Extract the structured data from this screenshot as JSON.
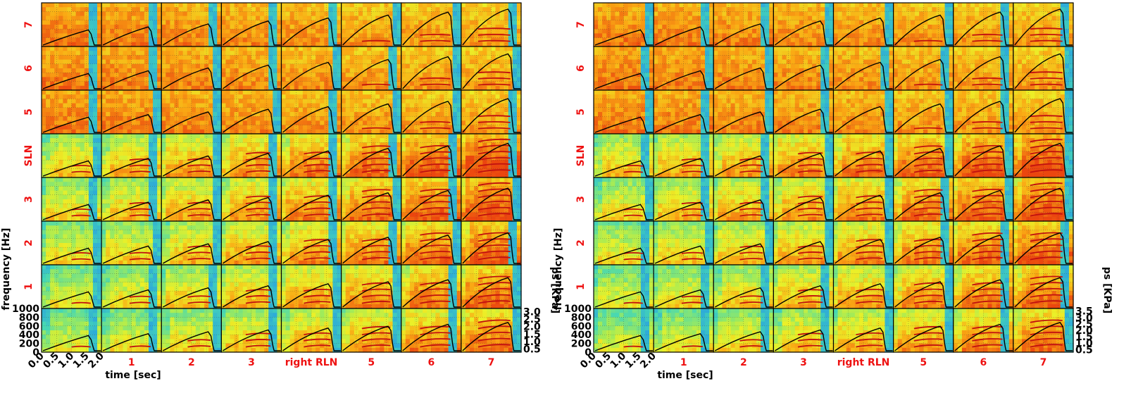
{
  "colors": {
    "label_red": "#ee1111",
    "text_black": "#000000",
    "background": "#ffffff",
    "trace": "#000000",
    "grid": "#333333",
    "harmonic": "#c01010"
  },
  "chart_data": [
    {
      "type": "heatmap",
      "title": "",
      "row_labels": [
        "7",
        "6",
        "5",
        "SLN",
        "3",
        "2",
        "1",
        ""
      ],
      "col_labels": [
        "",
        "1",
        "2",
        "3",
        "right RLN",
        "5",
        "6",
        "7"
      ],
      "ylabel": "frequency [Hz]",
      "y2label": "ps [KPa]",
      "xlabel": "time [sec]",
      "x_ticks": [
        "0.0",
        "0.5",
        "1.0",
        "1.5",
        "2.0"
      ],
      "xlim": [
        0.0,
        2.0
      ],
      "y_ticks": [
        "0",
        "200",
        "400",
        "600",
        "800",
        "1000"
      ],
      "ylim": [
        0,
        1000
      ],
      "y2_ticks": [
        "0.5",
        "1.0",
        "1.5",
        "2.0",
        "2.5",
        "3.0"
      ],
      "y2lim": [
        0.3,
        3.2
      ],
      "grid": true,
      "grid_rows": 8,
      "grid_cols": 8
    },
    {
      "type": "heatmap",
      "title": "",
      "row_labels": [
        "7",
        "6",
        "5",
        "SLN",
        "3",
        "2",
        "1",
        ""
      ],
      "col_labels": [
        "",
        "1",
        "2",
        "3",
        "right RLN",
        "5",
        "6",
        "7"
      ],
      "ylabel": "frequency [Hz]",
      "y2label": "ps [KPa]",
      "xlabel": "time [sec]",
      "x_ticks": [
        "0.0",
        "0.5",
        "1.0",
        "1.5",
        "2.0"
      ],
      "xlim": [
        0.0,
        2.0
      ],
      "y_ticks": [
        "0",
        "200",
        "400",
        "600",
        "800",
        "1000"
      ],
      "ylim": [
        0,
        1000
      ],
      "y2_ticks": [
        "0.5",
        "1.0",
        "1.5",
        "2.0",
        "2.5",
        "3.0",
        "3.5"
      ],
      "y2lim": [
        0.3,
        3.7
      ],
      "grid": true,
      "grid_rows": 8,
      "grid_cols": 8
    }
  ]
}
